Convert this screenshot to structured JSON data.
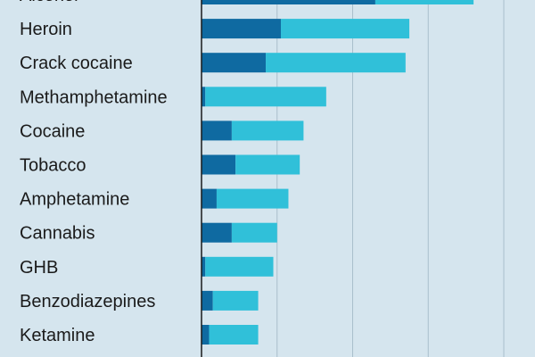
{
  "chart_data": {
    "type": "bar",
    "stacked": true,
    "orientation": "horizontal",
    "categories": [
      "Alcohol",
      "Heroin",
      "Crack cocaine",
      "Methamphetamine",
      "Cocaine",
      "Tobacco",
      "Amphetamine",
      "Cannabis",
      "GHB",
      "Benzodiazepines",
      "Ketamine"
    ],
    "series": [
      {
        "values": [
          46,
          21,
          17,
          1,
          8,
          9,
          4,
          8,
          1,
          3,
          2
        ]
      },
      {
        "values": [
          26,
          34,
          37,
          32,
          19,
          17,
          19,
          12,
          18,
          12,
          13
        ]
      }
    ],
    "series_colors": [
      "#0f6aa1",
      "#30c0d9"
    ],
    "xlim": [
      0,
      80
    ],
    "grid": true,
    "grid_lines_x": [
      20,
      40,
      60,
      80
    ],
    "title": "",
    "xlabel": "",
    "ylabel": ""
  }
}
